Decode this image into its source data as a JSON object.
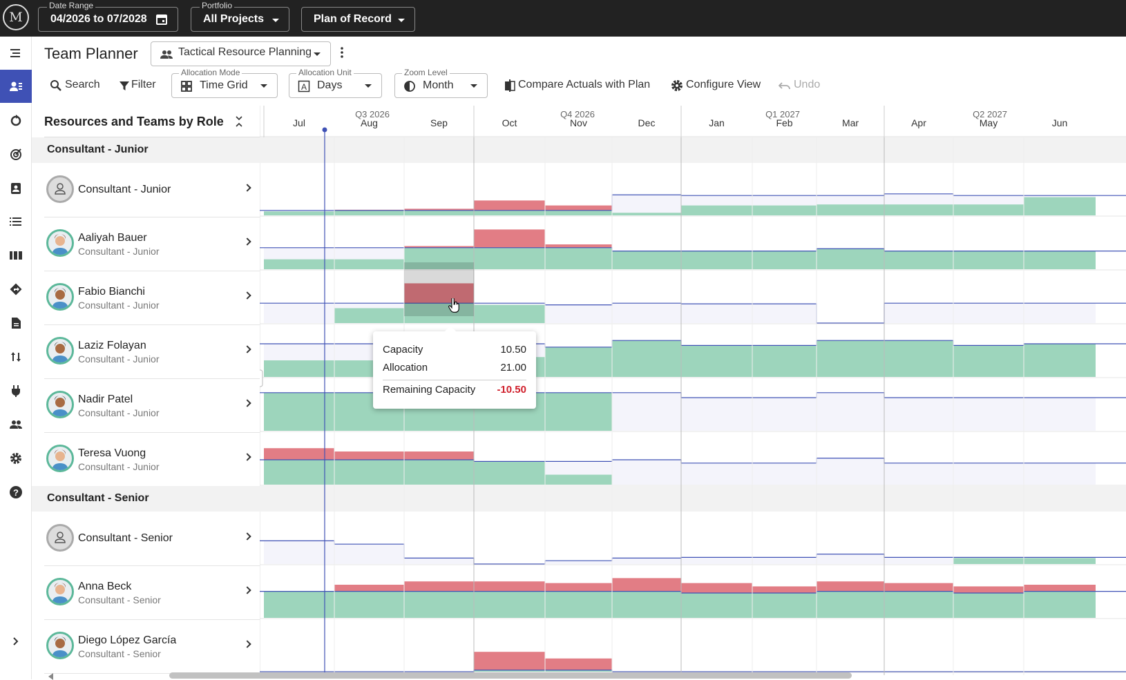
{
  "topbar": {
    "logo": "M",
    "date_range": {
      "label": "Date Range",
      "value": "04/2026 to 07/2028"
    },
    "portfolio": {
      "label": "Portfolio",
      "value": "All Projects"
    },
    "plan": {
      "value": "Plan of Record"
    }
  },
  "header": {
    "title": "Team Planner",
    "view_select": "Tactical Resource Planning",
    "search": "Search",
    "filter": "Filter",
    "allocation_mode": {
      "label": "Allocation Mode",
      "value": "Time Grid"
    },
    "allocation_unit": {
      "label": "Allocation Unit",
      "value": "Days"
    },
    "zoom_level": {
      "label": "Zoom Level",
      "value": "Month"
    },
    "compare": "Compare Actuals with Plan",
    "configure": "Configure View",
    "undo": "Undo"
  },
  "panel": {
    "title": "Resources and Teams by Role"
  },
  "timeline": {
    "quarters": [
      "Q3 2026",
      "Q4 2026",
      "Q1 2027",
      "Q2 2027"
    ],
    "months": [
      "Jul",
      "Aug",
      "Sep",
      "Oct",
      "Nov",
      "Dec",
      "Jan",
      "Feb",
      "Mar",
      "Apr",
      "May",
      "Jun"
    ]
  },
  "groups": [
    {
      "role": "Consultant - Junior",
      "rows": [
        {
          "name": "Consultant - Junior",
          "role": "",
          "avatar": "person-placeholder-icon",
          "cap": [
            0.15,
            0.15,
            0.15,
            0.15,
            0.15,
            0.62,
            0.6,
            0.6,
            0.6,
            0.65,
            0.6,
            0.6
          ],
          "alloc": [
            0.12,
            0.17,
            0.2,
            0.45,
            0.3,
            0.08,
            0.3,
            0.3,
            0.33,
            0.33,
            0.33,
            0.55
          ],
          "over": [
            false,
            true,
            true,
            true,
            true,
            false,
            false,
            false,
            false,
            false,
            false,
            false
          ]
        },
        {
          "name": "Aaliyah Bauer",
          "role": "Consultant - Junior",
          "avatar": "woman-avatar-icon",
          "cap": [
            0.65,
            0.65,
            0.65,
            0.65,
            0.65,
            0.55,
            0.55,
            0.55,
            0.62,
            0.55,
            0.55,
            0.55
          ],
          "alloc": [
            0.3,
            0.3,
            0.7,
            1.2,
            0.75,
            0.55,
            0.55,
            0.55,
            0.62,
            0.55,
            0.55,
            0.55
          ],
          "over": [
            false,
            false,
            true,
            true,
            true,
            false,
            false,
            false,
            false,
            false,
            false,
            false
          ]
        },
        {
          "name": "Fabio Bianchi",
          "role": "Consultant - Junior",
          "avatar": "man-avatar-icon",
          "cap": [
            0.6,
            0.6,
            0.6,
            0.6,
            0.55,
            0.6,
            0.58,
            0.58,
            0.0,
            0.6,
            0.6,
            0.6
          ],
          "alloc": [
            0.0,
            0.45,
            1.2,
            0.55,
            0.0,
            0.0,
            0.0,
            0.0,
            0.0,
            0.0,
            0.0,
            0.0
          ],
          "over": [
            false,
            true,
            true,
            false,
            false,
            false,
            false,
            false,
            false,
            false,
            false,
            false
          ]
        },
        {
          "name": "Laziz Folayan",
          "role": "Consultant - Junior",
          "avatar": "man-avatar-icon",
          "cap": [
            1.0,
            1.0,
            1.0,
            1.0,
            0.9,
            1.1,
            0.95,
            0.95,
            1.1,
            1.1,
            0.95,
            1.0
          ],
          "alloc": [
            0.5,
            0.5,
            0.5,
            0.6,
            0.9,
            1.1,
            0.95,
            0.95,
            1.1,
            1.1,
            0.95,
            1.0
          ],
          "over": [
            false,
            false,
            false,
            false,
            false,
            false,
            false,
            false,
            false,
            false,
            false,
            false
          ]
        },
        {
          "name": "Nadir Patel",
          "role": "Consultant - Junior",
          "avatar": "man-avatar-icon",
          "cap": [
            1.15,
            1.15,
            1.15,
            1.15,
            1.15,
            1.15,
            1.0,
            1.0,
            1.15,
            1.0,
            1.0,
            1.0
          ],
          "alloc": [
            1.15,
            1.15,
            1.15,
            1.15,
            1.15,
            0.0,
            0.0,
            0.0,
            0.0,
            0.0,
            0.0,
            0.0
          ],
          "over": [
            false,
            false,
            false,
            false,
            false,
            false,
            false,
            false,
            false,
            false,
            false,
            false
          ]
        },
        {
          "name": "Teresa Vuong",
          "role": "Consultant - Junior",
          "avatar": "woman-avatar-icon",
          "cap": [
            0.75,
            0.75,
            0.75,
            0.7,
            0.7,
            0.75,
            0.65,
            0.65,
            0.8,
            0.65,
            0.65,
            0.65
          ],
          "alloc": [
            1.1,
            1.0,
            1.0,
            0.7,
            0.3,
            0.0,
            0.0,
            0.0,
            0.0,
            0.0,
            0.0,
            0.0
          ],
          "over": [
            true,
            true,
            true,
            false,
            false,
            false,
            false,
            false,
            false,
            false,
            false,
            false
          ]
        }
      ]
    },
    {
      "role": "Consultant - Senior",
      "rows": [
        {
          "name": "Consultant - Senior",
          "role": "",
          "avatar": "person-placeholder-icon",
          "cap": [
            0.7,
            0.6,
            0.18,
            0.0,
            0.1,
            0.18,
            0.2,
            0.2,
            0.3,
            0.2,
            0.2,
            0.2
          ],
          "alloc": [
            0.0,
            0.0,
            0.0,
            0.0,
            0.0,
            0.0,
            0.0,
            0.0,
            0.0,
            0.0,
            0.18,
            0.18
          ],
          "over": [
            false,
            false,
            false,
            false,
            false,
            false,
            false,
            false,
            false,
            false,
            false,
            false
          ]
        },
        {
          "name": "Anna Beck",
          "role": "Consultant - Senior",
          "avatar": "woman-avatar-icon",
          "cap": [
            0.8,
            0.8,
            0.8,
            0.8,
            0.8,
            0.8,
            0.75,
            0.75,
            0.8,
            0.8,
            0.75,
            0.8
          ],
          "alloc": [
            0.8,
            1.0,
            1.1,
            1.1,
            1.05,
            1.2,
            1.05,
            0.95,
            1.1,
            1.05,
            0.95,
            1.0
          ],
          "over": [
            false,
            true,
            true,
            true,
            true,
            true,
            true,
            true,
            true,
            true,
            true,
            true
          ]
        },
        {
          "name": "Diego López García",
          "role": "Consultant - Senior",
          "avatar": "man-avatar-icon",
          "cap": [
            0.0,
            0.0,
            0.0,
            0.05,
            0.05,
            0.0,
            0.0,
            0.0,
            0.0,
            0.0,
            0.0,
            0.0
          ],
          "alloc": [
            0.0,
            0.0,
            0.0,
            0.6,
            0.4,
            0.0,
            0.0,
            0.0,
            0.0,
            0.0,
            0.0,
            0.0
          ],
          "over": [
            false,
            false,
            false,
            true,
            true,
            false,
            false,
            false,
            false,
            false,
            false,
            false
          ]
        }
      ]
    }
  ],
  "tooltip": {
    "capacity_label": "Capacity",
    "capacity": "10.50",
    "allocation_label": "Allocation",
    "allocation": "21.00",
    "remaining_label": "Remaining Capacity",
    "remaining": "-10.50"
  },
  "colors": {
    "allocation": "#9dd5bc",
    "over_allocation": "#e27d85",
    "capacity_line": "#3f51b5",
    "capacity_fill": "#f4f4fb",
    "remaining_negative": "#d0202c"
  }
}
